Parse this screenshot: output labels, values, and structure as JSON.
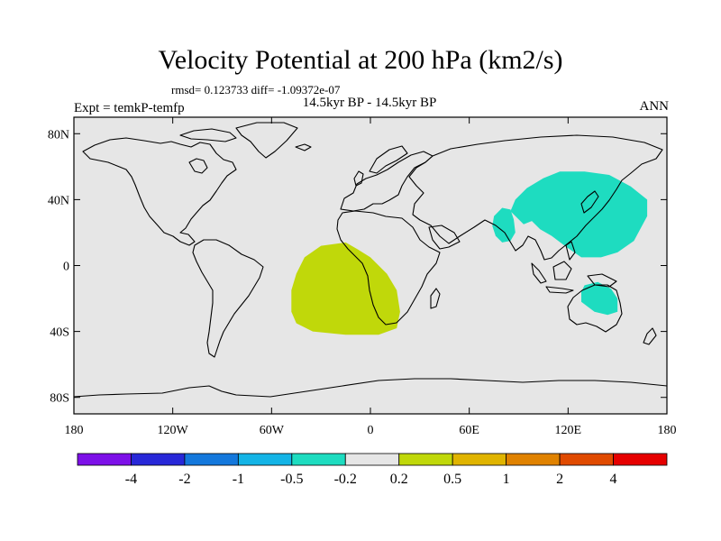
{
  "title": "Velocity Potential at 200 hPa (km2/s)",
  "stats": "rmsd= 0.123733  diff= -1.09372e-07",
  "subtitle": "14.5kyr BP - 14.5kyr BP",
  "expt": "Expt = temkP-temfp",
  "season": "ANN",
  "map": {
    "lon_range": [
      -180,
      180
    ],
    "lat_range": [
      -90,
      90
    ],
    "ocean_color": "#e6e6e6",
    "lat_ticks": [
      {
        "value": 80,
        "label": "80N"
      },
      {
        "value": 40,
        "label": "40N"
      },
      {
        "value": 0,
        "label": "0"
      },
      {
        "value": -40,
        "label": "40S"
      },
      {
        "value": -80,
        "label": "80S"
      }
    ],
    "lon_ticks": [
      {
        "value": -180,
        "label": "180"
      },
      {
        "value": -120,
        "label": "120W"
      },
      {
        "value": -60,
        "label": "60W"
      },
      {
        "value": 0,
        "label": "0"
      },
      {
        "value": 60,
        "label": "60E"
      },
      {
        "value": 120,
        "label": "120E"
      },
      {
        "value": 180,
        "label": "180"
      }
    ],
    "anomalies": [
      {
        "name": "south-atlantic-positive",
        "color": "#c0d80a",
        "outline": [
          [
            -45,
            -5
          ],
          [
            -40,
            5
          ],
          [
            -30,
            12
          ],
          [
            -15,
            14
          ],
          [
            -8,
            10
          ],
          [
            0,
            5
          ],
          [
            10,
            -5
          ],
          [
            16,
            -15
          ],
          [
            18,
            -28
          ],
          [
            16,
            -38
          ],
          [
            5,
            -42
          ],
          [
            -15,
            -42
          ],
          [
            -35,
            -40
          ],
          [
            -45,
            -35
          ],
          [
            -48,
            -28
          ],
          [
            -48,
            -15
          ]
        ]
      },
      {
        "name": "west-pacific-negative",
        "color": "#1edcc0",
        "outline": [
          [
            85,
            33
          ],
          [
            88,
            40
          ],
          [
            95,
            47
          ],
          [
            105,
            53
          ],
          [
            115,
            57
          ],
          [
            130,
            57
          ],
          [
            145,
            55
          ],
          [
            158,
            48
          ],
          [
            168,
            40
          ],
          [
            168,
            30
          ],
          [
            160,
            15
          ],
          [
            150,
            8
          ],
          [
            140,
            5
          ],
          [
            128,
            5
          ],
          [
            118,
            12
          ],
          [
            110,
            18
          ],
          [
            103,
            22
          ],
          [
            98,
            27
          ],
          [
            93,
            25
          ]
        ]
      },
      {
        "name": "arabian-sea-negative",
        "color": "#1edcc0",
        "outline": [
          [
            75,
            30
          ],
          [
            80,
            35
          ],
          [
            85,
            34
          ],
          [
            87,
            28
          ],
          [
            88,
            20
          ],
          [
            85,
            15
          ],
          [
            80,
            14
          ],
          [
            76,
            18
          ],
          [
            74,
            24
          ]
        ]
      },
      {
        "name": "australia-negative",
        "color": "#1edcc0",
        "outline": [
          [
            130,
            -12
          ],
          [
            138,
            -10
          ],
          [
            146,
            -14
          ],
          [
            150,
            -20
          ],
          [
            150,
            -28
          ],
          [
            144,
            -30
          ],
          [
            136,
            -28
          ],
          [
            128,
            -22
          ],
          [
            128,
            -16
          ]
        ]
      }
    ]
  },
  "colorbar": {
    "colors": [
      "#7d10e8",
      "#2828d8",
      "#1478dc",
      "#14b4e6",
      "#1edcc0",
      "#e6e6e6",
      "#c0d80a",
      "#e0b400",
      "#e08200",
      "#e04a00",
      "#e60000"
    ],
    "labels": [
      "-4",
      "-2",
      "-1",
      "-0.5",
      "-0.2",
      "0.2",
      "0.5",
      "1",
      "2",
      "4"
    ]
  }
}
